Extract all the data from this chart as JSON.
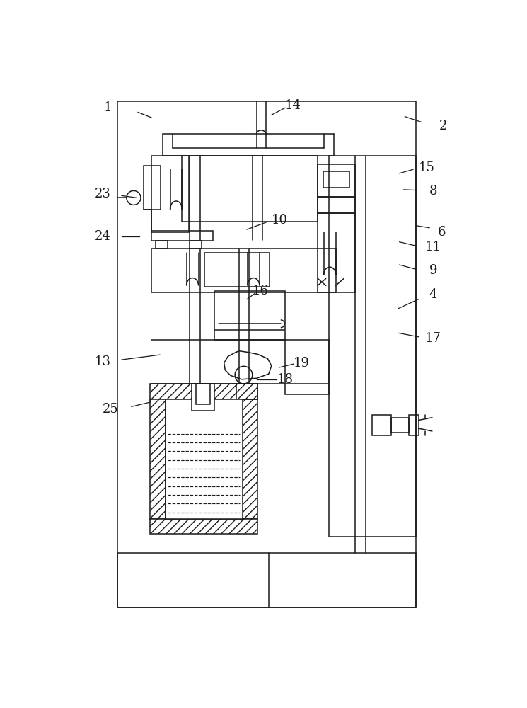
{
  "bg": "#ffffff",
  "lc": "#1a1a1a",
  "lw": 1.5,
  "lw_thin": 1.1,
  "fig_w": 7.45,
  "fig_h": 10.0,
  "labels": [
    [
      "1",
      75,
      42,
      130,
      50,
      155,
      60
    ],
    [
      "2",
      690,
      75,
      650,
      68,
      620,
      58
    ],
    [
      "4",
      672,
      385,
      645,
      393,
      608,
      410
    ],
    [
      "6",
      688,
      270,
      665,
      262,
      640,
      258
    ],
    [
      "8",
      672,
      195,
      640,
      193,
      618,
      192
    ],
    [
      "9",
      672,
      340,
      640,
      338,
      610,
      330
    ],
    [
      "10",
      390,
      248,
      365,
      252,
      330,
      265
    ],
    [
      "11",
      672,
      298,
      640,
      295,
      610,
      288
    ],
    [
      "13",
      65,
      508,
      100,
      504,
      170,
      495
    ],
    [
      "14",
      415,
      38,
      400,
      42,
      375,
      55
    ],
    [
      "15",
      660,
      152,
      635,
      155,
      610,
      162
    ],
    [
      "16",
      355,
      378,
      345,
      382,
      330,
      393
    ],
    [
      "17",
      672,
      465,
      645,
      462,
      608,
      455
    ],
    [
      "18",
      400,
      540,
      385,
      540,
      348,
      540
    ],
    [
      "19",
      430,
      510,
      415,
      512,
      390,
      518
    ],
    [
      "23",
      65,
      200,
      100,
      203,
      128,
      207
    ],
    [
      "24",
      65,
      278,
      100,
      278,
      132,
      278
    ],
    [
      "25",
      80,
      595,
      118,
      590,
      152,
      582
    ]
  ]
}
